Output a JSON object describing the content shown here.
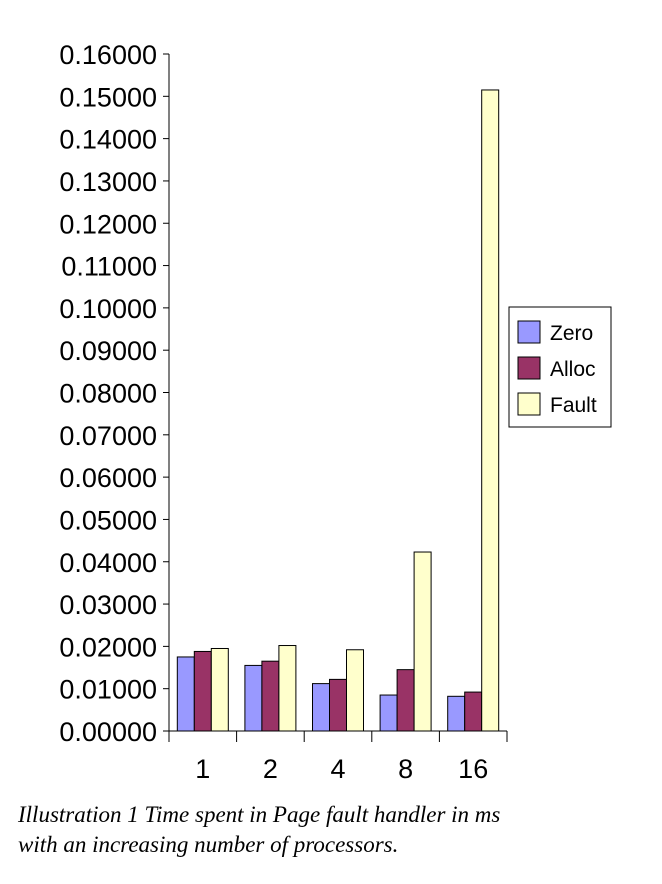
{
  "chart_data": {
    "type": "bar",
    "categories": [
      "1",
      "2",
      "4",
      "8",
      "16"
    ],
    "series": [
      {
        "name": "Zero",
        "color": "#9999FF",
        "values": [
          0.0175,
          0.0155,
          0.0112,
          0.0085,
          0.0082
        ]
      },
      {
        "name": "Alloc",
        "color": "#993366",
        "values": [
          0.0188,
          0.0165,
          0.0122,
          0.0145,
          0.0092
        ]
      },
      {
        "name": "Fault",
        "color": "#FFFFCC",
        "values": [
          0.0195,
          0.0202,
          0.0192,
          0.0423,
          0.1515
        ]
      }
    ],
    "yticks": [
      "0.00000",
      "0.01000",
      "0.02000",
      "0.03000",
      "0.04000",
      "0.05000",
      "0.06000",
      "0.07000",
      "0.08000",
      "0.09000",
      "0.10000",
      "0.11000",
      "0.12000",
      "0.13000",
      "0.14000",
      "0.15000",
      "0.16000"
    ],
    "ylim": [
      0,
      0.16
    ],
    "grid": false,
    "legend_position": "right"
  },
  "caption": {
    "line1": "Illustration 1 Time spent in Page fault handler in ms",
    "line2": "with an increasing number of processors."
  }
}
